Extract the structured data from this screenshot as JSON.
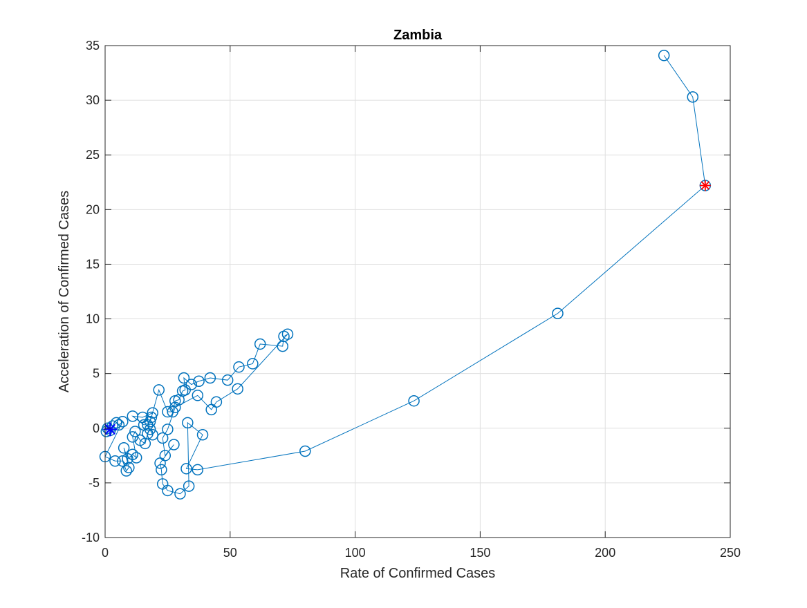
{
  "chart_data": {
    "type": "scatter",
    "title": "Zambia",
    "xlabel": "Rate of Confirmed Cases",
    "ylabel": "Acceleration of Confirmed Cases",
    "xlim": [
      0,
      250
    ],
    "ylim": [
      -10,
      35
    ],
    "xticks": [
      0,
      50,
      100,
      150,
      200,
      250
    ],
    "yticks": [
      -10,
      -5,
      0,
      5,
      10,
      15,
      20,
      25,
      30,
      35
    ],
    "grid": true,
    "colors": {
      "series": "#0072BD",
      "start_marker": "#0000FF",
      "end_marker": "#FF0000",
      "grid": "#DFDFDF",
      "axes": "#262626"
    },
    "series": [
      {
        "marker": "circle-with-line",
        "points": [
          [
            0.5,
            -0.3
          ],
          [
            1.0,
            0.0
          ],
          [
            2.0,
            -0.2
          ],
          [
            3.0,
            0.2
          ],
          [
            4.5,
            0.5
          ],
          [
            5.5,
            0.3
          ],
          [
            7.0,
            0.6
          ],
          [
            0.0,
            -2.6
          ],
          [
            4.0,
            -3.0
          ],
          [
            7.0,
            -3.0
          ],
          [
            8.5,
            -3.9
          ],
          [
            9.5,
            -3.6
          ],
          [
            7.5,
            -1.8
          ],
          [
            9.0,
            -2.8
          ],
          [
            11.0,
            -2.4
          ],
          [
            12.5,
            -2.7
          ],
          [
            11.0,
            -0.8
          ],
          [
            12.0,
            -0.3
          ],
          [
            14.0,
            -1.1
          ],
          [
            16.0,
            -1.4
          ],
          [
            17.0,
            -0.5
          ],
          [
            18.0,
            -0.1
          ],
          [
            19.0,
            -0.6
          ],
          [
            17.0,
            0.3
          ],
          [
            18.5,
            1.0
          ],
          [
            19.0,
            1.4
          ],
          [
            15.0,
            1.0
          ],
          [
            11.0,
            1.1
          ],
          [
            15.5,
            0.3
          ],
          [
            18.0,
            0.6
          ],
          [
            21.5,
            3.5
          ],
          [
            25.0,
            1.5
          ],
          [
            27.0,
            1.5
          ],
          [
            28.0,
            2.5
          ],
          [
            29.5,
            2.6
          ],
          [
            31.0,
            3.4
          ],
          [
            32.0,
            3.5
          ],
          [
            31.5,
            4.6
          ],
          [
            34.5,
            4.0
          ],
          [
            37.5,
            4.3
          ],
          [
            42.0,
            4.6
          ],
          [
            49.0,
            4.4
          ],
          [
            53.5,
            5.6
          ],
          [
            59.0,
            5.9
          ],
          [
            62.0,
            7.7
          ],
          [
            71.0,
            7.5
          ],
          [
            71.5,
            8.4
          ],
          [
            73.0,
            8.6
          ],
          [
            53.0,
            3.6
          ],
          [
            44.5,
            2.4
          ],
          [
            42.5,
            1.7
          ],
          [
            37.0,
            3.0
          ],
          [
            28.0,
            1.9
          ],
          [
            25.0,
            -0.1
          ],
          [
            23.0,
            -0.9
          ],
          [
            24.0,
            -2.5
          ],
          [
            27.5,
            -1.5
          ],
          [
            22.0,
            -3.2
          ],
          [
            22.5,
            -3.8
          ],
          [
            23.0,
            -5.1
          ],
          [
            25.0,
            -5.7
          ],
          [
            30.0,
            -6.0
          ],
          [
            33.5,
            -5.3
          ],
          [
            33.0,
            0.5
          ],
          [
            39.0,
            -0.6
          ],
          [
            32.5,
            -3.7
          ],
          [
            37.0,
            -3.8
          ],
          [
            80.0,
            -2.1
          ],
          [
            123.5,
            2.5
          ],
          [
            181.0,
            10.5
          ],
          [
            240.0,
            22.2
          ],
          [
            235.0,
            30.3
          ],
          [
            223.5,
            34.1
          ]
        ]
      }
    ],
    "start_point": [
      2.0,
      -0.1
    ],
    "end_point": [
      240.0,
      22.2
    ]
  }
}
